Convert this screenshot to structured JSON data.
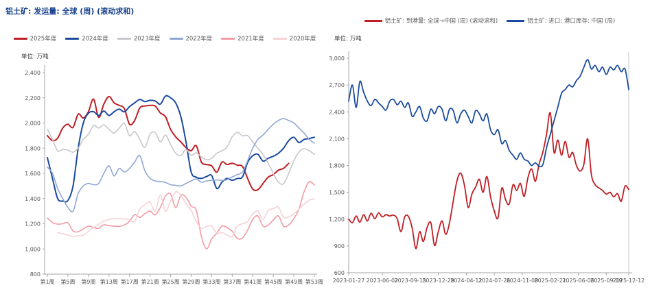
{
  "page": {
    "background": "#ffffff",
    "axis_color": "#a6a6a6",
    "tick_label_color": "#555555",
    "title_color": "#17418c"
  },
  "chart_data": [
    {
      "type": "line",
      "title": "铝土矿: 发运量: 全球 (周) (滚动求和)",
      "unit": "单位: 万吨",
      "ylabel": "万吨",
      "ylim": [
        800,
        2400
      ],
      "ytick_step": 200,
      "grid": false,
      "legend_position": "top-center",
      "x_ticks": {
        "labels": [
          "第1周",
          "第5周",
          "第9周",
          "第13周",
          "第17周",
          "第21周",
          "第25周",
          "第29周",
          "第33周",
          "第37周",
          "第41周",
          "第45周",
          "第49周",
          "第53周"
        ],
        "weeks": [
          1,
          5,
          9,
          13,
          17,
          21,
          25,
          29,
          33,
          37,
          41,
          45,
          49,
          53
        ]
      },
      "x_range_weeks": [
        1,
        53
      ],
      "series": [
        {
          "name": "2025年度",
          "color": "#bf1d23",
          "width": 2,
          "values": [
            1900,
            1860,
            1880,
            1960,
            1990,
            1965,
            2070,
            2040,
            2090,
            2190,
            2045,
            2150,
            2210,
            2160,
            2140,
            2115,
            1990,
            2020,
            2120,
            2135,
            2140,
            2135,
            2080,
            2050,
            1950,
            1890,
            1850,
            1805,
            1780,
            1820,
            1690,
            1670,
            1660,
            1610,
            1690,
            1670,
            1680,
            1665,
            1655,
            1560,
            1475,
            1470,
            1520,
            1570,
            1590,
            1625,
            1640,
            1680,
            null,
            null,
            null,
            null,
            null
          ]
        },
        {
          "name": "2024年度",
          "color": "#1a4a9e",
          "width": 2,
          "values": [
            1725,
            1560,
            1400,
            1380,
            1385,
            1500,
            1800,
            2000,
            2078,
            2090,
            2060,
            2095,
            2060,
            2090,
            2110,
            2089,
            2130,
            2160,
            2187,
            2170,
            2180,
            2175,
            2150,
            2214,
            2200,
            2160,
            2050,
            1850,
            1611,
            1570,
            1560,
            1575,
            1583,
            1480,
            1530,
            1560,
            1545,
            1560,
            1572,
            1687,
            1740,
            1752,
            1698,
            1720,
            1736,
            1760,
            1800,
            1860,
            1887,
            1845,
            1870,
            1877,
            1887
          ]
        },
        {
          "name": "2023年度",
          "color": "#c6c7cb",
          "width": 1.6,
          "values": [
            1950,
            1870,
            1779,
            1790,
            1785,
            1768,
            1800,
            1871,
            1910,
            1980,
            1960,
            1986,
            1950,
            1920,
            1960,
            1997,
            1899,
            1932,
            1870,
            1806,
            1910,
            1926,
            1850,
            1904,
            1830,
            1760,
            1741,
            1790,
            1745,
            1763,
            1730,
            1708,
            1720,
            1760,
            1779,
            1810,
            1890,
            1926,
            1899,
            1900,
            1850,
            1800,
            1750,
            1680,
            1600,
            1530,
            1518,
            1600,
            1700,
            1770,
            1796,
            1780,
            1750
          ]
        },
        {
          "name": "2022年度",
          "color": "#8fa7d3",
          "width": 1.6,
          "values": [
            1650,
            1600,
            1480,
            1400,
            1330,
            1300,
            1440,
            1500,
            1520,
            1510,
            1520,
            1600,
            1660,
            1580,
            1640,
            1611,
            1640,
            1690,
            1741,
            1620,
            1561,
            1540,
            1535,
            1528,
            1510,
            1505,
            1501,
            1520,
            1540,
            1556,
            1530,
            1540,
            1545,
            1548,
            1545,
            1550,
            1572,
            1590,
            1611,
            1700,
            1800,
            1870,
            1904,
            1950,
            1990,
            2020,
            2035,
            2020,
            2000,
            1960,
            1920,
            1870,
            1840
          ]
        },
        {
          "name": "2021年度",
          "color": "#f29aa4",
          "width": 1.6,
          "values": [
            1246,
            1210,
            1197,
            1200,
            1208,
            1143,
            1137,
            1160,
            1181,
            1170,
            1164,
            1192,
            1185,
            1181,
            1180,
            1190,
            1220,
            1273,
            1250,
            1280,
            1300,
            1270,
            1330,
            1420,
            1436,
            1328,
            1426,
            1410,
            1340,
            1306,
            1100,
            1001,
            1080,
            1126,
            1181,
            1170,
            1140,
            1083,
            1088,
            1150,
            1235,
            1262,
            1181,
            1190,
            1230,
            1262,
            1181,
            1190,
            1240,
            1317,
            1453,
            1534,
            1507
          ]
        },
        {
          "name": "2020年度",
          "color": "#f6d2d4",
          "width": 1.6,
          "values": [
            null,
            null,
            1130,
            1120,
            1110,
            1099,
            1105,
            1110,
            1140,
            1170,
            1197,
            1220,
            1235,
            1240,
            1240,
            1238,
            1230,
            1219,
            1317,
            1350,
            1371,
            1300,
            1426,
            1300,
            1380,
            1453,
            1426,
            1360,
            1306,
            1219,
            1164,
            1180,
            1181,
            1126,
            1130,
            1110,
            1099,
            1181,
            1200,
            1219,
            1279,
            1300,
            1235,
            1306,
            1320,
            1333,
            1252,
            1255,
            1280,
            1317,
            1355,
            1388,
            1398
          ]
        }
      ]
    },
    {
      "type": "line",
      "title": "",
      "unit": "单位: 万吨",
      "ylabel": "万吨",
      "ylim": [
        600,
        3000
      ],
      "ytick_step": 300,
      "grid": false,
      "legend_position": "top-center",
      "x_ticks": {
        "labels": [
          "2023-01-27",
          "2023-06-02",
          "2023-09-15",
          "2023-12-29",
          "2024-04-12",
          "2024-07-26",
          "2024-11-08",
          "2025-02-21",
          "2025-06-06",
          "2025-09-19",
          "2025-12-12"
        ],
        "fractions": [
          0,
          0.12,
          0.22,
          0.32,
          0.42,
          0.52,
          0.62,
          0.72,
          0.82,
          0.92,
          1.0
        ]
      },
      "x_range_dates": [
        "2023-01-27",
        "2025-12-12"
      ],
      "series": [
        {
          "name": "铝土矿: 到港量: 全球→中国 (周) (滚动求和)",
          "color": "#bf1d23",
          "width": 1.8,
          "values": [
            1200,
            1160,
            1235,
            1165,
            1250,
            1180,
            1265,
            1205,
            1270,
            1225,
            1250,
            1235,
            1245,
            1205,
            1060,
            1225,
            1230,
            1100,
            870,
            1060,
            950,
            1105,
            1160,
            905,
            1060,
            1180,
            1030,
            1160,
            1400,
            1630,
            1715,
            1580,
            1330,
            1480,
            1560,
            1646,
            1500,
            1677,
            1450,
            1290,
            1215,
            1546,
            1420,
            1369,
            1584,
            1520,
            1600,
            1454,
            1662,
            1762,
            1623,
            1815,
            1950,
            2150,
            2390,
            1946,
            2085,
            1915,
            2069,
            1892,
            1946,
            1800,
            1738,
            1815,
            2100,
            1700,
            1585,
            1550,
            1520,
            1480,
            1500,
            1450,
            1485,
            1400,
            1569,
            1531
          ]
        },
        {
          "name": "铝土矿: 进口: 港口库存: 中国 (周)",
          "color": "#1a4a9e",
          "width": 1.8,
          "values": [
            2520,
            2700,
            2450,
            2740,
            2620,
            2520,
            2470,
            2540,
            2500,
            2460,
            2420,
            2520,
            2540,
            2480,
            2520,
            2450,
            2500,
            2350,
            2400,
            2460,
            2330,
            2300,
            2430,
            2380,
            2460,
            2430,
            2300,
            2430,
            2415,
            2277,
            2377,
            2420,
            2350,
            2277,
            2415,
            2377,
            2300,
            2377,
            2200,
            2146,
            2200,
            2046,
            2080,
            1969,
            1915,
            1870,
            1940,
            1870,
            1850,
            1800,
            1830,
            1792,
            1810,
            2000,
            2150,
            2300,
            2450,
            2608,
            2650,
            2700,
            2680,
            2750,
            2800,
            2900,
            2985,
            2880,
            2920,
            2850,
            2900,
            2820,
            2900,
            2870,
            2920,
            2850,
            2880,
            2650
          ]
        }
      ]
    }
  ]
}
